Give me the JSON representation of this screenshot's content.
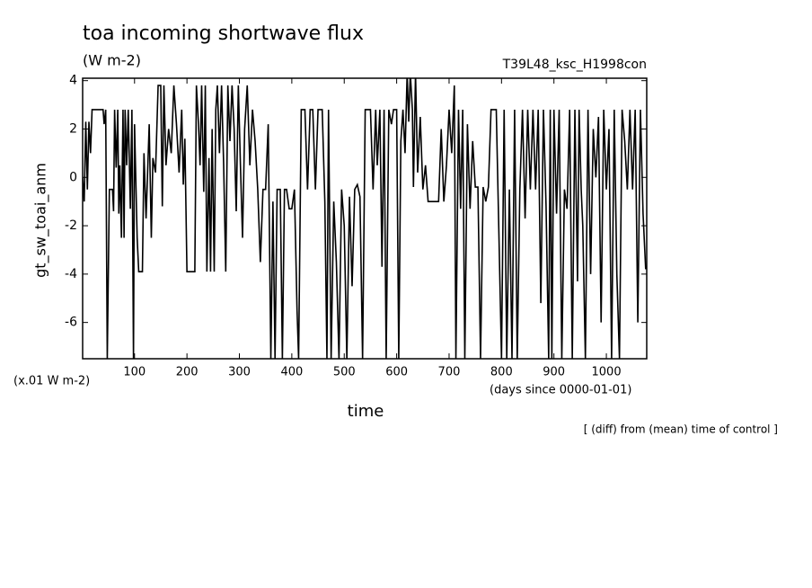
{
  "chart_data": {
    "type": "line",
    "title": "toa incoming shortwave flux",
    "subtitle": "(W m-2)",
    "run_label": "T39L48_ksc_H1998con",
    "y_label": "gt_sw_toai_anm",
    "y_unit_note": "(x.01 W m-2)",
    "x_label": "time",
    "x_unit_note": "(days since 0000-01-01)",
    "footnote": "[ (diff) from (mean) time of control ]",
    "color": "#000000",
    "xlim": [
      1,
      1077
    ],
    "ylim": [
      -7.5,
      4.1
    ],
    "xticks": [
      100,
      200,
      300,
      400,
      500,
      600,
      700,
      800,
      900,
      1000
    ],
    "yticks": [
      -6,
      -4,
      -2,
      0,
      2,
      4
    ],
    "x": [
      1,
      4,
      7,
      10,
      13,
      16,
      19,
      25,
      40,
      42,
      45,
      48,
      52,
      58,
      60,
      62,
      65,
      68,
      70,
      72,
      75,
      78,
      80,
      82,
      85,
      88,
      92,
      95,
      98,
      100,
      105,
      108,
      115,
      118,
      122,
      128,
      132,
      135,
      140,
      145,
      150,
      153,
      156,
      160,
      165,
      170,
      175,
      180,
      185,
      190,
      193,
      196,
      200,
      215,
      218,
      222,
      225,
      228,
      232,
      235,
      238,
      242,
      245,
      248,
      252,
      255,
      258,
      262,
      266,
      270,
      274,
      278,
      282,
      286,
      290,
      294,
      298,
      302,
      306,
      310,
      315,
      320,
      325,
      330,
      335,
      340,
      345,
      350,
      355,
      360,
      364,
      368,
      372,
      378,
      382,
      386,
      390,
      395,
      400,
      405,
      410,
      413,
      418,
      425,
      430,
      435,
      440,
      445,
      450,
      458,
      463,
      467,
      470,
      475,
      480,
      485,
      490,
      495,
      500,
      505,
      510,
      515,
      520,
      525,
      530,
      535,
      540,
      550,
      555,
      560,
      563,
      568,
      572,
      576,
      580,
      585,
      590,
      594,
      600,
      604,
      608,
      612,
      616,
      620,
      623,
      626,
      630,
      632,
      636,
      640,
      645,
      650,
      655,
      660,
      680,
      685,
      690,
      695,
      700,
      705,
      710,
      713,
      718,
      722,
      726,
      730,
      735,
      740,
      745,
      750,
      755,
      760,
      765,
      770,
      775,
      780,
      790,
      795,
      800,
      805,
      810,
      815,
      820,
      825,
      830,
      835,
      840,
      845,
      850,
      855,
      860,
      865,
      870,
      875,
      880,
      885,
      890,
      893,
      896,
      900,
      905,
      910,
      915,
      920,
      925,
      930,
      935,
      940,
      945,
      948,
      952,
      955,
      960,
      965,
      970,
      975,
      980,
      985,
      990,
      995,
      1000,
      1005,
      1010,
      1015,
      1020,
      1025,
      1030,
      1035,
      1040,
      1045,
      1050,
      1055,
      1060,
      1065,
      1070,
      1075
    ],
    "values": [
      0,
      -1,
      2.3,
      -0.5,
      2.3,
      1,
      2.8,
      2.8,
      2.8,
      2.2,
      2.8,
      -7.5,
      -0.5,
      -0.5,
      -1.4,
      2.8,
      0.4,
      2.8,
      -1.5,
      0.5,
      -2.5,
      2.8,
      -2.5,
      2.8,
      0.5,
      2.8,
      -1.3,
      2.8,
      -7.5,
      2.2,
      -2.5,
      -3.9,
      -3.9,
      1,
      -1.7,
      2.2,
      -2.5,
      0.8,
      0.2,
      3.8,
      3.8,
      -1.2,
      3.8,
      0.5,
      2,
      1,
      3.8,
      2.2,
      0.2,
      2.8,
      -0.3,
      1.6,
      -3.9,
      -3.9,
      3.8,
      2.2,
      0.5,
      3.8,
      -0.6,
      3.8,
      -3.9,
      0.8,
      -3.9,
      2,
      -3.9,
      2.8,
      3.8,
      1,
      3.8,
      0.5,
      -3.9,
      3.8,
      1.5,
      3.8,
      2,
      -1.4,
      3.8,
      0.5,
      -2.5,
      2,
      3.8,
      0.5,
      2.8,
      1.5,
      -0.5,
      -3.5,
      -0.5,
      -0.5,
      2.2,
      -7.5,
      -1,
      -7.5,
      -0.5,
      -0.5,
      -7.5,
      -0.5,
      -0.5,
      -1.3,
      -1.3,
      -0.5,
      -5.5,
      -7.5,
      2.8,
      2.8,
      -0.5,
      2.8,
      2.8,
      -0.5,
      2.8,
      2.8,
      -1,
      -7.5,
      2.8,
      -7.5,
      -1,
      -3.5,
      -7.5,
      -0.5,
      -2,
      -7.5,
      -0.8,
      -4.5,
      -0.5,
      -0.3,
      -0.8,
      -7.5,
      2.8,
      2.8,
      -0.5,
      2.8,
      0.5,
      2.8,
      -3.7,
      2.8,
      -7.5,
      2.8,
      2.2,
      2.8,
      2.8,
      -7.5,
      1.5,
      2.8,
      1,
      4.3,
      2.3,
      4.3,
      2.8,
      -0.4,
      4.3,
      0.2,
      2.5,
      -0.5,
      0.5,
      -1,
      -1,
      2,
      -1,
      0.5,
      2.8,
      1,
      3.8,
      -7.5,
      2.8,
      -1.3,
      2.8,
      -7.5,
      2.2,
      -1.3,
      1.5,
      -0.4,
      -0.4,
      -7.5,
      -0.4,
      -1,
      -0.4,
      2.8,
      2.8,
      -2.3,
      -7.5,
      2.8,
      -7.5,
      -0.5,
      -7.5,
      2.8,
      -7.5,
      -0.5,
      2.8,
      -1.7,
      2.8,
      -0.5,
      2.8,
      -0.5,
      2.8,
      -5.2,
      2.8,
      -1.2,
      -7.5,
      2.8,
      -7.5,
      2.8,
      -1.5,
      2.8,
      -7.5,
      -0.5,
      -1.3,
      2.8,
      -7.5,
      2.8,
      -4.3,
      2.8,
      -0.5,
      -2,
      -7.5,
      2.8,
      -4,
      2,
      0,
      2.5,
      -6,
      2.8,
      -0.5,
      2,
      -7.5,
      2.8,
      -4,
      -7.5,
      2.8,
      1.5,
      -0.5,
      2.8,
      -0.5,
      2.8,
      -6,
      2.8,
      -1.5,
      -3.8
    ]
  }
}
